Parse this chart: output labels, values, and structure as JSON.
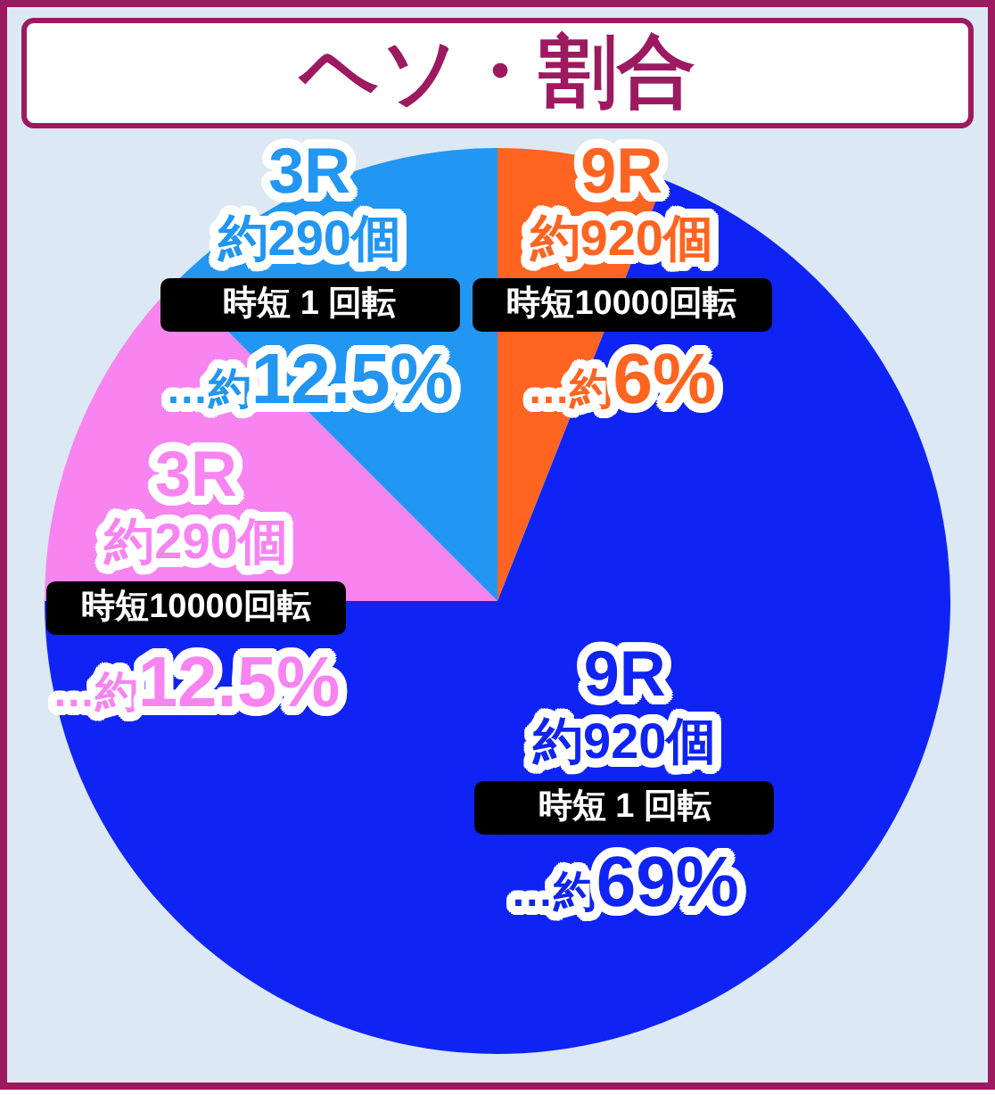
{
  "chart_data": {
    "type": "pie",
    "title": "ヘソ・割合",
    "categories": [
      "9R\n約920個",
      "9R\n約920個",
      "3R\n約290個",
      "3R\n約290個"
    ],
    "values": [
      6,
      69,
      12.5,
      12.5
    ],
    "colors": [
      "#ff6420",
      "#0f24f4",
      "#f784f0",
      "#2196f2"
    ],
    "value_labels": [
      "…約6%",
      "…約69%",
      "…約12.5%",
      "…約12.5%"
    ],
    "annotations": [
      "時短10000回転",
      "時短 1 回転",
      "時短10000回転",
      "時短 1 回転"
    ]
  }
}
